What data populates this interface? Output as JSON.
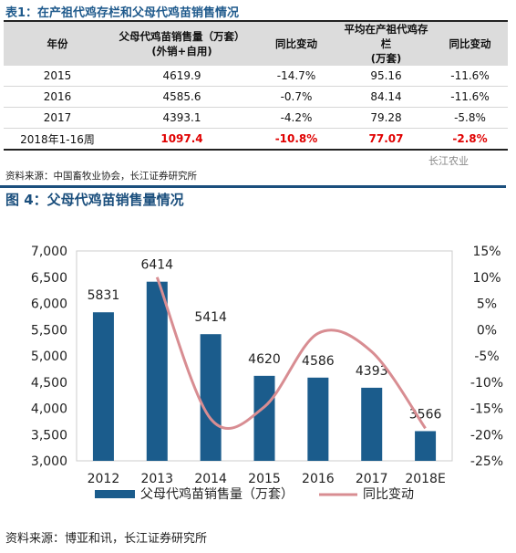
{
  "table": {
    "title": "表1：在产祖代鸡存栏和父母代鸡苗销售情况",
    "headers": {
      "year": "年份",
      "sales_line1": "父母代鸡苗销售量（万套）",
      "sales_line2": "(外销+自用)",
      "yoy1": "同比变动",
      "stock_line1": "平均在产祖代鸡存栏",
      "stock_line2": "(万套)",
      "yoy2": "同比变动"
    },
    "rows": [
      {
        "year": "2015",
        "sales": "4619.9",
        "yoy1": "-14.7%",
        "stock": "95.16",
        "yoy2": "-11.6%"
      },
      {
        "year": "2016",
        "sales": "4585.6",
        "yoy1": "-0.7%",
        "stock": "84.14",
        "yoy2": "-11.6%"
      },
      {
        "year": "2017",
        "sales": "4393.1",
        "yoy1": "-4.2%",
        "stock": "79.28",
        "yoy2": "-5.8%"
      },
      {
        "year": "2018年1-16周",
        "sales": "1097.4",
        "yoy1": "-10.8%",
        "stock": "77.07",
        "yoy2": "-2.8%"
      }
    ],
    "source": "资料来源：中国畜牧业协会，长江证券研究所",
    "watermark": "长江农业"
  },
  "figure": {
    "title": "图 4：父母代鸡苗销售量情况",
    "source": "资料来源：博亚和讯，长江证券研究所"
  },
  "chart_data": {
    "type": "bar",
    "categories": [
      "2012",
      "2013",
      "2014",
      "2015",
      "2016",
      "2017",
      "2018E"
    ],
    "series": [
      {
        "name": "父母代鸡苗销售量（万套）",
        "type": "bar",
        "axis": "left",
        "color": "#1b5c8c",
        "values": [
          5831,
          6414,
          5414,
          4620,
          4586,
          4393,
          3566
        ]
      },
      {
        "name": "同比变动",
        "type": "line",
        "axis": "right",
        "color": "#d88d92",
        "values": [
          null,
          10,
          -17,
          -14.7,
          -0.7,
          -4.2,
          -18.8
        ]
      }
    ],
    "data_labels": [
      "5831",
      "6414",
      "5414",
      "4620",
      "4586",
      "4393",
      "3566"
    ],
    "ylim": [
      3000,
      7000
    ],
    "yticks": [
      "3,000",
      "3,500",
      "4,000",
      "4,500",
      "5,000",
      "5,500",
      "6,000",
      "6,500",
      "7,000"
    ],
    "y2lim": [
      -25,
      15
    ],
    "y2ticks": [
      "-25%",
      "-20%",
      "-15%",
      "-10%",
      "-5%",
      "0%",
      "5%",
      "10%",
      "15%"
    ],
    "legend_position": "bottom"
  }
}
